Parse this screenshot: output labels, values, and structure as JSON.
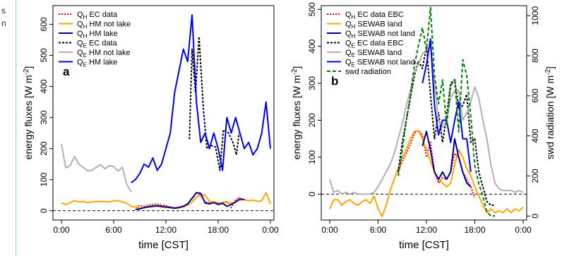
{
  "margin_text": [
    "s",
    "n"
  ],
  "chart_data": [
    {
      "type": "line",
      "panel_label": "a",
      "xlabel": "time [CST]",
      "ylabel": "energy fluxes  [W  m",
      "ylabel_sup": "-2",
      "ylabel_end": "]",
      "xlim": [
        0,
        24
      ],
      "ylim": [
        -30,
        660
      ],
      "xticks": [
        0,
        6,
        12,
        18,
        24
      ],
      "xtick_labels": [
        "0:00",
        "6:00",
        "12:00",
        "18:00",
        "0:00"
      ],
      "yticks": [
        0,
        100,
        200,
        300,
        400,
        500,
        600
      ],
      "ytick_labels": [
        "0",
        "100",
        "200",
        "300",
        "400",
        "500",
        "600"
      ],
      "hline": 0,
      "legend_position": "top-left",
      "series": [
        {
          "label": "Q",
          "sub": "H",
          "suffix": " EC data",
          "color": "#ff0000",
          "dash": "2,2",
          "x": [
            8.5,
            9,
            9.5,
            10,
            10.5,
            11,
            11.5,
            12,
            12.5,
            13,
            13.5,
            14,
            14.5,
            15,
            15.5,
            16,
            16.5,
            17,
            17.5,
            18,
            18.5,
            19,
            19.5,
            20,
            20.5
          ],
          "y": [
            12,
            16,
            14,
            18,
            20,
            22,
            18,
            16,
            12,
            10,
            12,
            15,
            22,
            40,
            58,
            50,
            28,
            25,
            27,
            24,
            26,
            30,
            10,
            35,
            44
          ]
        },
        {
          "label": "Q",
          "sub": "H",
          "suffix": " HM not lake",
          "color": "#ffa500",
          "dash": "",
          "x": [
            0,
            0.5,
            1,
            1.5,
            2,
            2.5,
            3,
            3.5,
            4,
            4.5,
            5,
            5.5,
            6,
            6.5,
            7,
            7.5,
            8,
            8.5,
            9,
            9.5,
            10,
            10.5,
            11,
            11.5,
            12,
            12.5,
            13,
            13.5,
            14,
            14.5,
            15,
            15.5,
            16,
            16.5,
            17,
            17.5,
            18,
            18.5,
            19,
            19.5,
            20,
            20.5,
            21,
            21.5,
            22,
            22.5,
            23,
            23.5,
            24
          ],
          "y": [
            26,
            20,
            26,
            32,
            28,
            30,
            26,
            28,
            30,
            30,
            30,
            28,
            32,
            32,
            28,
            24,
            14,
            12,
            8,
            10,
            14,
            16,
            14,
            12,
            10,
            10,
            8,
            10,
            12,
            18,
            28,
            44,
            52,
            50,
            30,
            28,
            26,
            24,
            28,
            24,
            28,
            34,
            36,
            32,
            34,
            30,
            32,
            58,
            22
          ]
        },
        {
          "label": "Q",
          "sub": "H",
          "suffix": " HM lake",
          "color": "#000099",
          "dash": "",
          "x": [
            8.5,
            9,
            9.5,
            10,
            10.5,
            11,
            11.5,
            12,
            12.5,
            13,
            13.5,
            14,
            14.5,
            15,
            15.5,
            16,
            16.5,
            17,
            17.5,
            18,
            18.5,
            19,
            19.5,
            20,
            20.5,
            21
          ],
          "y": [
            4,
            6,
            10,
            12,
            14,
            16,
            14,
            12,
            10,
            8,
            10,
            14,
            22,
            40,
            58,
            56,
            25,
            22,
            26,
            20,
            24,
            14,
            20,
            28,
            38,
            36
          ]
        },
        {
          "label": "Q",
          "sub": "E",
          "suffix": " EC data",
          "color": "#000000",
          "dash": "3,2",
          "x": [
            14.7,
            15,
            15.4,
            15.8,
            16.3,
            16.7,
            17.2,
            17.7,
            18.2,
            18.6,
            19.2,
            19.7,
            20.1,
            20.4
          ],
          "y": [
            230,
            520,
            380,
            560,
            330,
            200,
            210,
            205,
            130,
            260,
            250,
            220,
            180,
            250
          ]
        },
        {
          "label": "Q",
          "sub": "E",
          "suffix": " HM not lake",
          "color": "#b0b0b0",
          "dash": "",
          "x": [
            0,
            0.5,
            1,
            1.5,
            2,
            2.5,
            3,
            3.5,
            4,
            4.5,
            5,
            5.5,
            6,
            6.5,
            7,
            7.5,
            8
          ],
          "y": [
            215,
            138,
            145,
            175,
            150,
            140,
            128,
            130,
            140,
            148,
            135,
            145,
            142,
            128,
            140,
            85,
            60
          ]
        },
        {
          "label": "Q",
          "sub": "E",
          "suffix": " HM lake",
          "color": "#0000ee",
          "dash": "",
          "x": [
            8,
            8.5,
            9,
            9.5,
            10,
            10.5,
            11,
            11.5,
            12,
            12.5,
            13,
            13.5,
            14,
            14.5,
            15,
            15.5,
            16,
            16.5,
            17,
            17.5,
            18,
            18.5,
            19,
            19.5,
            20,
            20.5,
            21,
            21.5,
            22,
            22.5,
            23,
            23.5,
            24
          ],
          "y": [
            90,
            100,
            120,
            150,
            140,
            170,
            130,
            150,
            200,
            250,
            380,
            450,
            520,
            480,
            630,
            350,
            220,
            250,
            200,
            250,
            200,
            130,
            300,
            250,
            300,
            250,
            200,
            220,
            180,
            200,
            250,
            350,
            200
          ]
        }
      ]
    },
    {
      "type": "line",
      "panel_label": "b",
      "xlabel": "time [CST]",
      "ylabel": "energy fluxes  [W  m",
      "ylabel_sup": "-2",
      "ylabel_end": "]",
      "y2label": "swd radiation  [W  m",
      "y2label_sup": "-2",
      "y2label_end": "]",
      "xlim": [
        0,
        24
      ],
      "ylim": [
        -70,
        510
      ],
      "y2lim": [
        -20,
        1050
      ],
      "xticks": [
        0,
        6,
        12,
        18,
        24
      ],
      "xtick_labels": [
        "0:00",
        "6:00",
        "12:00",
        "18:00",
        "0:00"
      ],
      "yticks": [
        0,
        100,
        200,
        300,
        400,
        500
      ],
      "ytick_labels": [
        "0",
        "100",
        "200",
        "300",
        "400",
        "500"
      ],
      "y2ticks": [
        0,
        200,
        400,
        600,
        800,
        1000
      ],
      "y2tick_labels": [
        "0",
        "200",
        "400",
        "600",
        "800",
        "1000"
      ],
      "hline": 0,
      "legend_position": "top-left",
      "series": [
        {
          "label": "Q",
          "sub": "H",
          "suffix": " EC data EBC",
          "color": "#ff0000",
          "dash": "2,2",
          "x": [
            8.5,
            9,
            9.5,
            10,
            10.5,
            11,
            11.5,
            12,
            12.5,
            13,
            13.5,
            14,
            14.5,
            15,
            15.5,
            16,
            16.5,
            17,
            17.5,
            18
          ],
          "y": [
            60,
            90,
            110,
            135,
            165,
            172,
            160,
            100,
            140,
            60,
            30,
            45,
            40,
            60,
            110,
            100,
            60,
            40,
            20,
            -10
          ]
        },
        {
          "label": "Q",
          "sub": "H",
          "suffix": " SEWAB land",
          "color": "#ffa500",
          "dash": "",
          "x": [
            0,
            0.5,
            1,
            1.5,
            2,
            2.5,
            3,
            3.5,
            4,
            4.5,
            5,
            5.5,
            6,
            6.5,
            7,
            7.5,
            8,
            8.5,
            9,
            9.5,
            10,
            10.5,
            11,
            11.5,
            12,
            12.5,
            13,
            13.5,
            14,
            14.5,
            15,
            15.5,
            16,
            16.5,
            17,
            17.5,
            18,
            18.5,
            19,
            19.5,
            20,
            20.5,
            21,
            21.5,
            22,
            22.5,
            23,
            23.5,
            24
          ],
          "y": [
            -40,
            -15,
            -15,
            -30,
            -20,
            -15,
            -25,
            -30,
            -20,
            -15,
            -25,
            -5,
            -40,
            -60,
            -30,
            10,
            40,
            70,
            100,
            120,
            150,
            170,
            172,
            150,
            120,
            90,
            60,
            40,
            30,
            20,
            30,
            80,
            120,
            100,
            70,
            50,
            20,
            -5,
            -30,
            -50,
            -40,
            -50,
            -45,
            -50,
            -40,
            -50,
            -40,
            -45,
            -35
          ]
        },
        {
          "label": "Q",
          "sub": "H",
          "suffix": " SEWAB not land",
          "color": "#000099",
          "dash": "",
          "x": [
            11.5,
            12,
            12.5,
            13,
            13.5,
            14,
            14.5,
            15,
            15.5,
            16,
            16.5,
            17,
            17.5
          ],
          "y": [
            130,
            170,
            120,
            60,
            40,
            60,
            40,
            60,
            150,
            100,
            60,
            30,
            20
          ]
        },
        {
          "label": "Q",
          "sub": "E",
          "suffix": " EC data EBC",
          "color": "#000000",
          "dash": "3,2",
          "x": [
            8.5,
            9,
            9.5,
            10,
            10.5,
            11,
            11.5,
            12,
            12.5,
            13,
            13.5,
            14,
            14.5,
            15,
            15.5,
            16,
            16.5,
            17,
            17.5,
            18,
            18.5,
            19,
            19.5,
            20,
            20.5
          ],
          "y": [
            60,
            140,
            200,
            260,
            320,
            360,
            340,
            400,
            270,
            150,
            220,
            140,
            210,
            300,
            310,
            230,
            240,
            270,
            140,
            150,
            60,
            20,
            -20,
            -30,
            -30
          ]
        },
        {
          "label": "Q",
          "sub": "E",
          "suffix": " SEWAB land",
          "color": "#b0b0b0",
          "dash": "",
          "x": [
            0,
            0.5,
            1,
            1.5,
            2,
            2.5,
            3,
            3.5,
            4,
            4.5,
            5,
            5.5,
            6,
            6.5,
            7,
            7.5,
            8,
            8.5,
            9,
            9.5,
            10,
            10.5,
            11,
            11.5,
            12,
            12.5,
            13,
            13.5,
            14,
            14.5,
            15,
            15.5,
            16,
            16.5,
            17,
            17.5,
            18,
            18.5,
            19,
            19.5,
            20,
            20.5,
            21,
            21.5,
            22,
            22.5,
            23,
            23.5,
            24
          ],
          "y": [
            40,
            5,
            10,
            0,
            5,
            0,
            5,
            0,
            0,
            0,
            0,
            5,
            20,
            40,
            60,
            80,
            110,
            150,
            190,
            240,
            280,
            330,
            350,
            380,
            390,
            400,
            300,
            200,
            180,
            200,
            260,
            280,
            280,
            200,
            220,
            250,
            290,
            260,
            200,
            150,
            80,
            30,
            15,
            10,
            10,
            10,
            5,
            10,
            5
          ]
        },
        {
          "label": "Q",
          "sub": "E",
          "suffix": " SEWAB not land",
          "color": "#0000ee",
          "dash": "",
          "x": [
            11.5,
            12,
            12.5,
            13,
            13.5,
            14,
            14.5,
            15,
            15.5,
            16,
            16.5,
            17,
            17.5
          ],
          "y": [
            300,
            350,
            420,
            240,
            160,
            200,
            200,
            140,
            200,
            250,
            150,
            150,
            60
          ]
        },
        {
          "label": "swd radiation",
          "sub": "",
          "suffix": "",
          "color": "#008000",
          "dash": "5,3",
          "axis": "right",
          "x": [
            8.5,
            9,
            9.5,
            10,
            10.5,
            11,
            11.5,
            12,
            12.5,
            13,
            13.5,
            14,
            14.5,
            15,
            15.5,
            16,
            16.5,
            17,
            17.5,
            18,
            18.5,
            19,
            19.5,
            20,
            20.5
          ],
          "y": [
            200,
            330,
            480,
            600,
            750,
            850,
            940,
            830,
            1040,
            700,
            560,
            680,
            450,
            650,
            680,
            420,
            780,
            700,
            500,
            250,
            160,
            100,
            20,
            0,
            0
          ]
        }
      ]
    }
  ]
}
